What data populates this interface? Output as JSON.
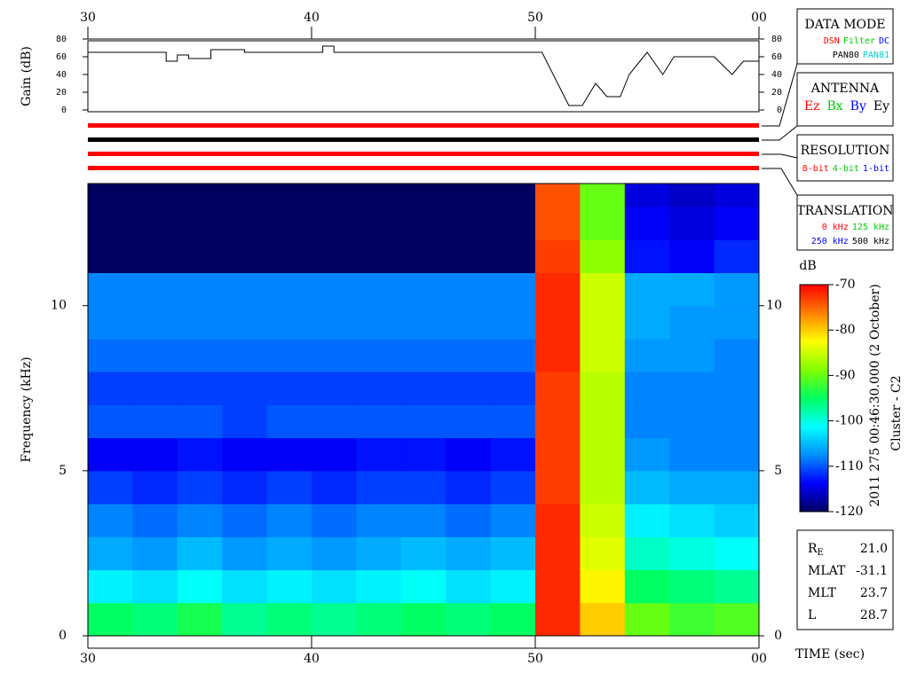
{
  "chart_data": [
    {
      "type": "line",
      "ylabel": "Gain (dB)",
      "xlim": [
        30,
        60
      ],
      "xticks": [
        30,
        40,
        50,
        {
          "value": 60,
          "label": "00"
        }
      ],
      "ylim": [
        0,
        80
      ],
      "yticks": [
        0,
        20,
        40,
        60,
        80
      ],
      "series": [
        {
          "color": "#000000",
          "x": [
            30,
            33.5,
            33.5,
            34,
            34,
            34.5,
            34.5,
            35.5,
            35.5,
            37,
            37,
            40.5,
            40.5,
            41,
            41,
            50.3,
            51.5,
            52.1,
            52.7,
            53.2,
            53.8,
            54.2,
            55,
            55.7,
            56.2,
            58,
            58.8,
            59.3,
            60
          ],
          "values": [
            65,
            65,
            55,
            55,
            62,
            62,
            58,
            58,
            68,
            68,
            65,
            65,
            72,
            72,
            65,
            65,
            5,
            5,
            30,
            15,
            15,
            40,
            65,
            40,
            60,
            60,
            40,
            55,
            55
          ]
        }
      ]
    },
    {
      "type": "heatmap",
      "ylabel": "Frequency (kHz)",
      "xlabel": "TIME (sec)",
      "colorbar_label": "dB",
      "xlim": [
        30,
        60
      ],
      "xticks": [
        30,
        40,
        50,
        {
          "value": 60,
          "label": "00"
        }
      ],
      "ylim": [
        0,
        13.7
      ],
      "yticks": [
        0,
        5,
        10
      ],
      "zlim": [
        -120,
        -70
      ],
      "zticks": [
        -70,
        -80,
        -90,
        -100,
        -110,
        -120
      ],
      "colorscale": [
        "#000060",
        "#0000ff",
        "#0090ff",
        "#00ffff",
        "#00ff60",
        "#80ff00",
        "#ffff00",
        "#ff8000",
        "#ff0000"
      ],
      "x_bins": [
        30,
        32,
        34,
        36,
        38,
        40,
        42,
        44,
        46,
        48,
        50,
        52,
        54,
        56,
        58,
        60
      ],
      "y_bins": [
        0,
        1,
        2,
        3,
        4,
        5,
        6,
        7,
        8,
        9,
        10,
        11,
        12,
        13,
        13.7
      ],
      "z": [
        [
          -95,
          -96,
          -94,
          -97,
          -96,
          -97,
          -96,
          -95,
          -96,
          -95,
          -72,
          -80,
          -90,
          -92,
          -91
        ],
        [
          -102,
          -103,
          -101,
          -103,
          -102,
          -103,
          -102,
          -101,
          -103,
          -102,
          -72,
          -82,
          -95,
          -96,
          -97
        ],
        [
          -106,
          -107,
          -105,
          -107,
          -106,
          -107,
          -106,
          -105,
          -106,
          -105,
          -72,
          -84,
          -99,
          -100,
          -101
        ],
        [
          -108,
          -109,
          -108,
          -109,
          -108,
          -109,
          -108,
          -108,
          -109,
          -108,
          -72,
          -85,
          -102,
          -103,
          -104
        ],
        [
          -111,
          -112,
          -111,
          -112,
          -111,
          -112,
          -111,
          -111,
          -112,
          -111,
          -73,
          -86,
          -105,
          -106,
          -106
        ],
        [
          -114,
          -114,
          -113,
          -114,
          -114,
          -114,
          -113,
          -113,
          -114,
          -113,
          -73,
          -86,
          -107,
          -108,
          -108
        ],
        [
          -110,
          -110,
          -110,
          -111,
          -110,
          -110,
          -110,
          -110,
          -110,
          -110,
          -73,
          -86,
          -108,
          -108,
          -108
        ],
        [
          -111,
          -111,
          -111,
          -111,
          -111,
          -111,
          -111,
          -111,
          -111,
          -111,
          -73,
          -86,
          -108,
          -108,
          -108
        ],
        [
          -109,
          -109,
          -109,
          -109,
          -109,
          -109,
          -109,
          -109,
          -109,
          -109,
          -72,
          -85,
          -107,
          -107,
          -108
        ],
        [
          -108,
          -108,
          -108,
          -108,
          -108,
          -108,
          -108,
          -108,
          -108,
          -108,
          -72,
          -85,
          -106,
          -107,
          -107
        ],
        [
          -108,
          -108,
          -108,
          -108,
          -108,
          -108,
          -108,
          -108,
          -108,
          -108,
          -72,
          -85,
          -106,
          -106,
          -107
        ],
        [
          -120,
          -120,
          -120,
          -120,
          -120,
          -120,
          -120,
          -120,
          -120,
          -120,
          -73,
          -88,
          -113,
          -114,
          -112
        ],
        [
          -120,
          -120,
          -120,
          -120,
          -120,
          -120,
          -120,
          -120,
          -120,
          -120,
          -74,
          -90,
          -114,
          -115,
          -114
        ],
        [
          -120,
          -120,
          -120,
          -120,
          -120,
          -120,
          -120,
          -120,
          -120,
          -120,
          -74,
          -90,
          -115,
          -116,
          -115
        ]
      ]
    }
  ],
  "status_bars": [
    "#ff0000",
    "#000000",
    "#ff0000",
    "#ff0000"
  ],
  "panels": [
    {
      "title": "DATA MODE",
      "rows": [
        [
          {
            "text": "DSN",
            "color": "#ff0000"
          },
          {
            "text": "Filter",
            "color": "#00cc00"
          },
          {
            "text": "DC",
            "color": "#0000ff"
          }
        ],
        [
          {
            "text": "PAN80",
            "color": "#000000"
          },
          {
            "text": "PAN81",
            "color": "#00cccc"
          }
        ]
      ]
    },
    {
      "title": "ANTENNA",
      "rows": [
        [
          {
            "text": "Ez",
            "color": "#ff0000"
          },
          {
            "text": "Bx",
            "color": "#00cc00"
          },
          {
            "text": "By",
            "color": "#0000ff"
          },
          {
            "text": "Ey",
            "color": "#000000"
          }
        ]
      ]
    },
    {
      "title": "RESOLUTION",
      "rows": [
        [
          {
            "text": "8-bit",
            "color": "#ff0000"
          },
          {
            "text": "4-bit",
            "color": "#00cc00"
          },
          {
            "text": "1-bit",
            "color": "#0000ff"
          }
        ]
      ]
    },
    {
      "title": "TRANSLATION",
      "rows": [
        [
          {
            "text": "0 kHz",
            "color": "#ff0000"
          },
          {
            "text": "125 kHz",
            "color": "#00cc00"
          }
        ],
        [
          {
            "text": "250 kHz",
            "color": "#0000ff"
          },
          {
            "text": "500 kHz",
            "color": "#000000"
          }
        ]
      ]
    }
  ],
  "timestamp": "2011 275 00:46:30.000 (2 October)",
  "spacecraft": "Cluster - C2",
  "ephemeris": [
    {
      "label": "R",
      "sub": "E",
      "value": "21.0"
    },
    {
      "label": "MLAT",
      "value": "-31.1"
    },
    {
      "label": "MLT",
      "value": "23.7"
    },
    {
      "label": "L",
      "value": "28.7"
    }
  ]
}
